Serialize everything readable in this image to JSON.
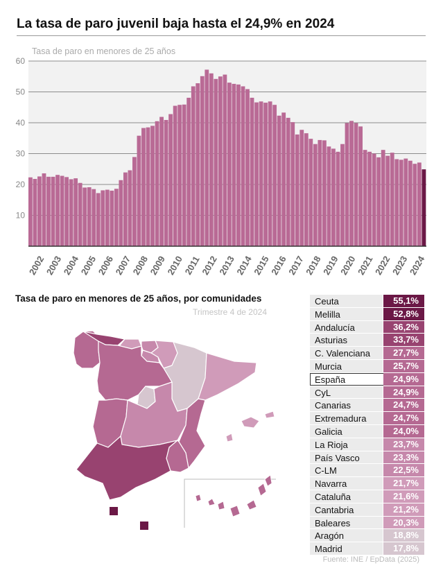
{
  "header": {
    "title": "La tasa de paro juvenil baja hasta el 24,9% en 2024"
  },
  "bar_section": {
    "subtitle": "Tasa de paro en menores de 25 años"
  },
  "map_section": {
    "title": "Tasa de paro en menores de 25 años, por comunidades",
    "period": "Trimestre 4 de 2024"
  },
  "source": "Fuente: INE / EpData (2025)",
  "colors": {
    "bar": "#b96a95",
    "bar_last": "#6b1846",
    "grid": "#8c8c8c",
    "plot_bg": "#f2f2f2"
  },
  "chart_data": [
    {
      "type": "bar",
      "title": "Tasa de paro en menores de 25 años",
      "y_ticks": [
        10,
        20,
        30,
        40,
        50,
        60
      ],
      "ylim": [
        0,
        60
      ],
      "year_labels": [
        "2002",
        "2003",
        "2004",
        "2005",
        "2006",
        "2007",
        "2008",
        "2009",
        "2010",
        "2011",
        "2012",
        "2013",
        "2014",
        "2015",
        "2016",
        "2017",
        "2018",
        "2019",
        "2020",
        "2021",
        "2022",
        "2023",
        "2024"
      ],
      "grid": true,
      "values": [
        22.3,
        21.8,
        22.6,
        23.6,
        22.5,
        22.5,
        23.1,
        22.8,
        22.4,
        21.7,
        22.0,
        20.5,
        19.0,
        19.1,
        18.5,
        17.2,
        18.1,
        18.3,
        18.0,
        18.6,
        21.4,
        23.9,
        24.6,
        28.9,
        35.8,
        38.3,
        38.5,
        39.0,
        40.5,
        41.9,
        40.9,
        42.8,
        45.5,
        45.8,
        45.9,
        48.1,
        51.8,
        52.8,
        55.1,
        57.2,
        56.0,
        54.2,
        55.0,
        55.6,
        53.0,
        52.6,
        52.4,
        51.8,
        50.9,
        48.1,
        46.6,
        46.9,
        46.5,
        46.9,
        45.8,
        42.3,
        43.3,
        41.6,
        40.2,
        36.2,
        37.7,
        36.6,
        34.8,
        33.1,
        34.4,
        34.3,
        32.3,
        31.6,
        30.6,
        33.1,
        39.9,
        40.6,
        39.9,
        38.8,
        31.2,
        30.6,
        30.0,
        28.8,
        31.2,
        29.3,
        30.3,
        28.2,
        28.0,
        28.4,
        27.7,
        26.7,
        27.1,
        24.9
      ]
    },
    {
      "type": "table",
      "title": "Tasa de paro en menores de 25 años, por comunidades",
      "rows": [
        {
          "name": "Ceuta",
          "label": "55,1%",
          "value": 55.1,
          "color": "#6b1846"
        },
        {
          "name": "Melilla",
          "label": "52,8%",
          "value": 52.8,
          "color": "#6b1846"
        },
        {
          "name": "Andalucía",
          "label": "36,2%",
          "value": 36.2,
          "color": "#984370"
        },
        {
          "name": "Asturias",
          "label": "33,7%",
          "value": 33.7,
          "color": "#984370"
        },
        {
          "name": "C. Valenciana",
          "label": "27,7%",
          "value": 27.7,
          "color": "#b56992"
        },
        {
          "name": "Murcia",
          "label": "25,7%",
          "value": 25.7,
          "color": "#b56992"
        },
        {
          "name": "España",
          "label": "24,9%",
          "value": 24.9,
          "color": "#b56992",
          "highlight": true
        },
        {
          "name": "CyL",
          "label": "24,9%",
          "value": 24.9,
          "color": "#b56992"
        },
        {
          "name": "Canarias",
          "label": "24,7%",
          "value": 24.7,
          "color": "#b56992"
        },
        {
          "name": "Extremadura",
          "label": "24,7%",
          "value": 24.7,
          "color": "#b56992"
        },
        {
          "name": "Galicia",
          "label": "24,0%",
          "value": 24.0,
          "color": "#b56992"
        },
        {
          "name": "La Rioja",
          "label": "23,7%",
          "value": 23.7,
          "color": "#c688ab"
        },
        {
          "name": "País Vasco",
          "label": "23,3%",
          "value": 23.3,
          "color": "#c688ab"
        },
        {
          "name": "C-LM",
          "label": "22,5%",
          "value": 22.5,
          "color": "#c688ab"
        },
        {
          "name": "Navarra",
          "label": "21,7%",
          "value": 21.7,
          "color": "#d09bb9"
        },
        {
          "name": "Cataluña",
          "label": "21,6%",
          "value": 21.6,
          "color": "#d09bb9"
        },
        {
          "name": "Cantabria",
          "label": "21,2%",
          "value": 21.2,
          "color": "#d09bb9"
        },
        {
          "name": "Baleares",
          "label": "20,3%",
          "value": 20.3,
          "color": "#d09bb9"
        },
        {
          "name": "Aragón",
          "label": "18,8%",
          "value": 18.8,
          "color": "#d6c6cf"
        },
        {
          "name": "Madrid",
          "label": "17,8%",
          "value": 17.8,
          "color": "#d6c6cf"
        }
      ]
    }
  ]
}
